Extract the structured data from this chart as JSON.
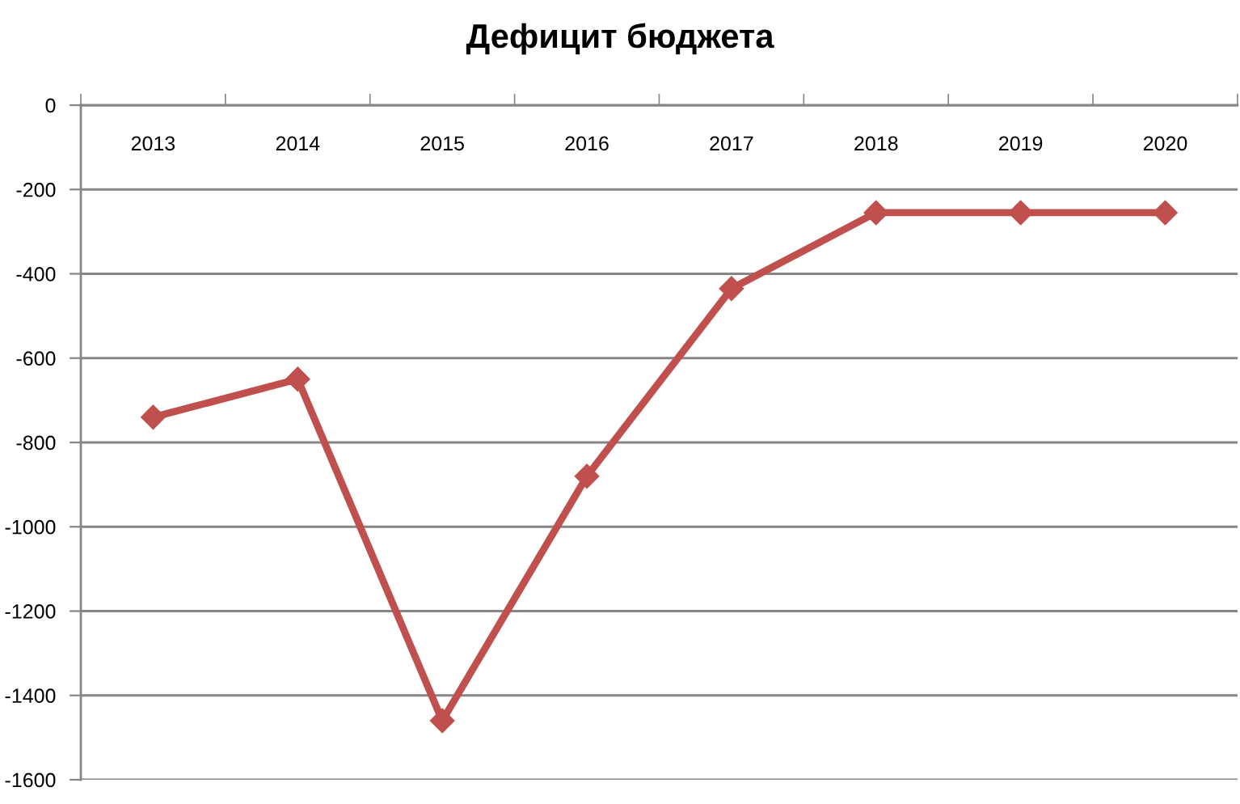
{
  "chart_data": {
    "type": "line",
    "title": "Дефицит бюджета",
    "categories": [
      "2013",
      "2014",
      "2015",
      "2016",
      "2017",
      "2018",
      "2019",
      "2020"
    ],
    "series": [
      {
        "color": "#c0504d",
        "values": [
          -740,
          -650,
          -1460,
          -880,
          -435,
          -255,
          -255,
          -255
        ]
      }
    ],
    "ylim": [
      -1600,
      0
    ],
    "yticks": [
      -1600,
      -1400,
      -1200,
      -1000,
      -800,
      -600,
      -400,
      -200,
      0
    ],
    "grid": "y",
    "marker": "diamond",
    "line_style": "solid"
  }
}
